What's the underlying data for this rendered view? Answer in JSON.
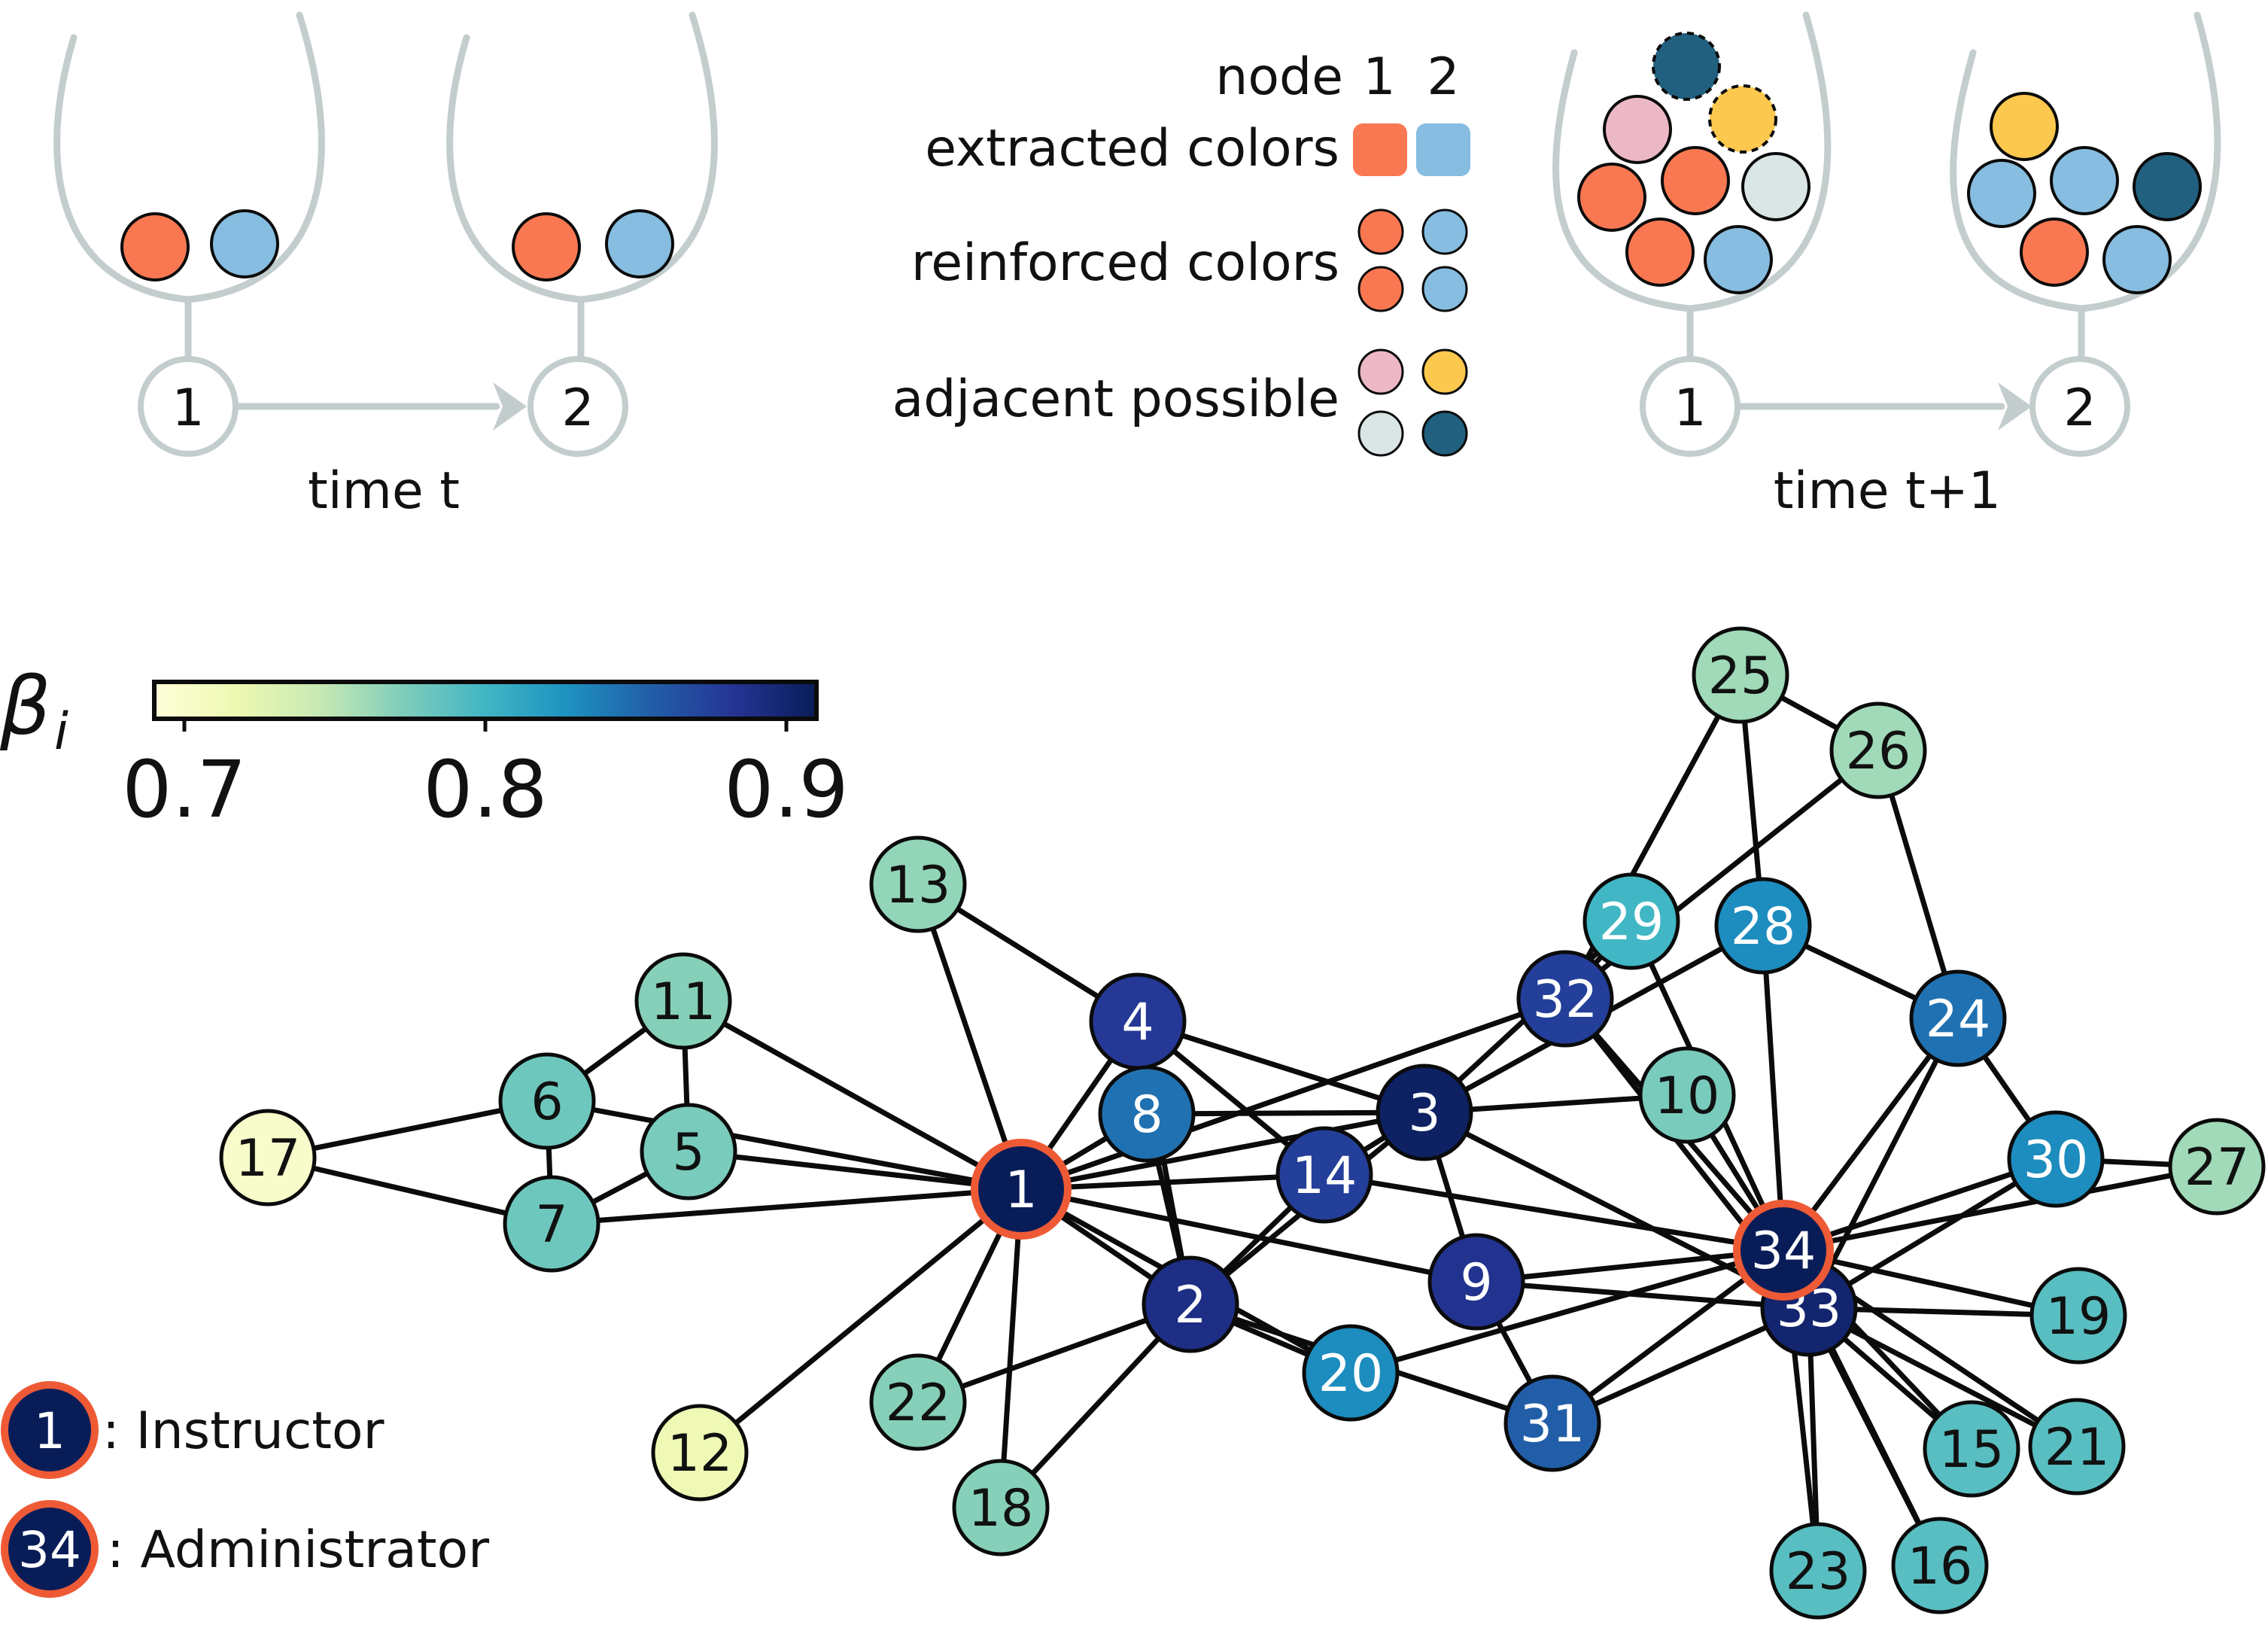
{
  "colors": {
    "orange": "#f97852",
    "blue": "#86bde0",
    "pink": "#edb8c5",
    "yellow": "#fdc84e",
    "pale": "#dae5e5",
    "navy": "#22607f",
    "gray": "#c3cdcd",
    "highlight": "#ee5a35"
  },
  "urn_panel": {
    "left_time_label": "time t",
    "right_time_label": "time t+1",
    "node1": "1",
    "node2": "2",
    "legend": {
      "node_word": "node",
      "node1": "1",
      "node2": "2",
      "extracted": "extracted colors",
      "reinforced": "reinforced colors",
      "adjacent": "adjacent possible"
    }
  },
  "colorbar": {
    "symbol": "β",
    "subscript": "i",
    "ticks": [
      "0.7",
      "0.8",
      "0.9"
    ],
    "tick_values": [
      0.7,
      0.8,
      0.9
    ],
    "range": [
      0.69,
      0.91
    ],
    "colormap": [
      "#ffffd9",
      "#edf8b1",
      "#c7e9b4",
      "#7fcdbb",
      "#41b6c4",
      "#1d91c0",
      "#225ea8",
      "#253494",
      "#081d58"
    ]
  },
  "network_legend": {
    "instructor_node": "1",
    "instructor_label": ": Instructor",
    "administrator_node": "34",
    "administrator_label": ": Administrator"
  },
  "network": {
    "nodes": [
      {
        "id": "1",
        "beta": 0.91
      },
      {
        "id": "2",
        "beta": 0.89
      },
      {
        "id": "3",
        "beta": 0.905
      },
      {
        "id": "4",
        "beta": 0.88
      },
      {
        "id": "5",
        "beta": 0.775
      },
      {
        "id": "6",
        "beta": 0.78
      },
      {
        "id": "7",
        "beta": 0.78
      },
      {
        "id": "8",
        "beta": 0.845
      },
      {
        "id": "9",
        "beta": 0.885
      },
      {
        "id": "10",
        "beta": 0.775
      },
      {
        "id": "11",
        "beta": 0.77
      },
      {
        "id": "12",
        "beta": 0.715
      },
      {
        "id": "13",
        "beta": 0.765
      },
      {
        "id": "14",
        "beta": 0.875
      },
      {
        "id": "15",
        "beta": 0.79
      },
      {
        "id": "16",
        "beta": 0.79
      },
      {
        "id": "17",
        "beta": 0.7
      },
      {
        "id": "18",
        "beta": 0.77
      },
      {
        "id": "19",
        "beta": 0.79
      },
      {
        "id": "20",
        "beta": 0.83
      },
      {
        "id": "21",
        "beta": 0.79
      },
      {
        "id": "22",
        "beta": 0.77
      },
      {
        "id": "23",
        "beta": 0.79
      },
      {
        "id": "24",
        "beta": 0.845
      },
      {
        "id": "25",
        "beta": 0.76
      },
      {
        "id": "26",
        "beta": 0.76
      },
      {
        "id": "27",
        "beta": 0.76
      },
      {
        "id": "28",
        "beta": 0.83
      },
      {
        "id": "29",
        "beta": 0.8
      },
      {
        "id": "30",
        "beta": 0.83
      },
      {
        "id": "31",
        "beta": 0.855
      },
      {
        "id": "32",
        "beta": 0.875
      },
      {
        "id": "33",
        "beta": 0.9
      },
      {
        "id": "34",
        "beta": 0.91
      }
    ],
    "edges": [
      [
        "1",
        "2"
      ],
      [
        "1",
        "3"
      ],
      [
        "1",
        "4"
      ],
      [
        "1",
        "5"
      ],
      [
        "1",
        "6"
      ],
      [
        "1",
        "7"
      ],
      [
        "1",
        "8"
      ],
      [
        "1",
        "9"
      ],
      [
        "1",
        "11"
      ],
      [
        "1",
        "12"
      ],
      [
        "1",
        "13"
      ],
      [
        "1",
        "14"
      ],
      [
        "1",
        "18"
      ],
      [
        "1",
        "20"
      ],
      [
        "1",
        "22"
      ],
      [
        "1",
        "32"
      ],
      [
        "2",
        "3"
      ],
      [
        "2",
        "4"
      ],
      [
        "2",
        "8"
      ],
      [
        "2",
        "14"
      ],
      [
        "2",
        "18"
      ],
      [
        "2",
        "20"
      ],
      [
        "2",
        "22"
      ],
      [
        "2",
        "31"
      ],
      [
        "3",
        "4"
      ],
      [
        "3",
        "8"
      ],
      [
        "3",
        "9"
      ],
      [
        "3",
        "10"
      ],
      [
        "3",
        "14"
      ],
      [
        "3",
        "28"
      ],
      [
        "3",
        "29"
      ],
      [
        "3",
        "33"
      ],
      [
        "4",
        "8"
      ],
      [
        "4",
        "13"
      ],
      [
        "4",
        "14"
      ],
      [
        "5",
        "7"
      ],
      [
        "5",
        "11"
      ],
      [
        "6",
        "7"
      ],
      [
        "6",
        "11"
      ],
      [
        "6",
        "17"
      ],
      [
        "7",
        "17"
      ],
      [
        "9",
        "31"
      ],
      [
        "9",
        "33"
      ],
      [
        "9",
        "34"
      ],
      [
        "10",
        "34"
      ],
      [
        "14",
        "34"
      ],
      [
        "15",
        "33"
      ],
      [
        "15",
        "34"
      ],
      [
        "16",
        "33"
      ],
      [
        "16",
        "34"
      ],
      [
        "19",
        "33"
      ],
      [
        "19",
        "34"
      ],
      [
        "20",
        "34"
      ],
      [
        "21",
        "33"
      ],
      [
        "21",
        "34"
      ],
      [
        "23",
        "33"
      ],
      [
        "23",
        "34"
      ],
      [
        "24",
        "26"
      ],
      [
        "24",
        "28"
      ],
      [
        "24",
        "30"
      ],
      [
        "24",
        "33"
      ],
      [
        "24",
        "34"
      ],
      [
        "25",
        "26"
      ],
      [
        "25",
        "28"
      ],
      [
        "25",
        "32"
      ],
      [
        "26",
        "32"
      ],
      [
        "27",
        "30"
      ],
      [
        "27",
        "34"
      ],
      [
        "28",
        "34"
      ],
      [
        "29",
        "32"
      ],
      [
        "29",
        "34"
      ],
      [
        "30",
        "33"
      ],
      [
        "30",
        "34"
      ],
      [
        "31",
        "33"
      ],
      [
        "31",
        "34"
      ],
      [
        "32",
        "33"
      ],
      [
        "32",
        "34"
      ],
      [
        "33",
        "34"
      ]
    ]
  }
}
